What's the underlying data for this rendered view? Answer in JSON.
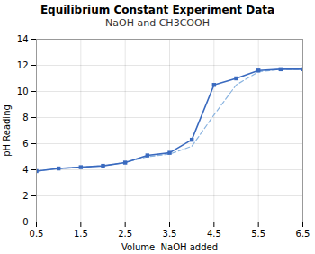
{
  "chart_data": {
    "type": "line",
    "title": "Equilibrium Constant Experiment Data",
    "subtitle": "NaOH and CH3COOH",
    "x_label": "Volume  NaOH added",
    "y_label": "pH Reading",
    "x": [
      0.5,
      1.0,
      1.5,
      2.0,
      2.5,
      3.0,
      3.5,
      4.0,
      4.5,
      5.0,
      5.5,
      6.0,
      6.5
    ],
    "series": [
      {
        "color": "#8ab4e0",
        "line_style": "dashed",
        "values": [
          3.9,
          4.1,
          4.2,
          4.3,
          4.55,
          5.0,
          5.2,
          5.8,
          8.2,
          10.5,
          11.5,
          11.7,
          11.7
        ]
      },
      {
        "color": "#3a6abf",
        "line_style": "solid",
        "marker": "square",
        "values": [
          3.9,
          4.1,
          4.2,
          4.3,
          4.55,
          5.1,
          5.3,
          6.3,
          10.5,
          11.0,
          11.6,
          11.7,
          11.7
        ]
      }
    ],
    "xlim": [
      0.5,
      6.5
    ],
    "ylim": [
      0,
      14
    ],
    "xticks": [
      0.5,
      1.5,
      2.5,
      3.5,
      4.5,
      5.5,
      6.5
    ],
    "yticks": [
      0,
      2,
      4,
      6,
      8,
      10,
      12,
      14
    ],
    "grid": true
  }
}
